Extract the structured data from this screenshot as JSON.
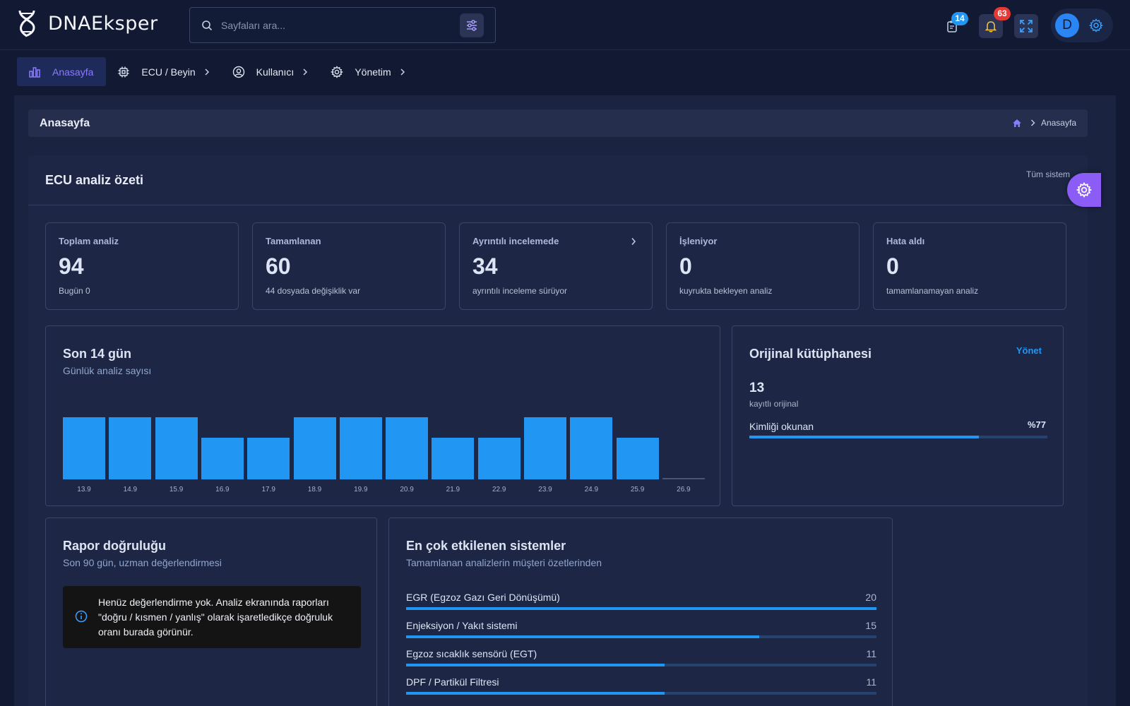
{
  "brand": {
    "name": "DNAEksper"
  },
  "search": {
    "placeholder": "Sayfaları ara..."
  },
  "topbar": {
    "tasks_badge": "14",
    "notifications_badge": "63",
    "avatar_initial": "D"
  },
  "nav": {
    "items": [
      {
        "label": "Anasayfa"
      },
      {
        "label": "ECU / Beyin"
      },
      {
        "label": "Kullanıcı"
      },
      {
        "label": "Yönetim"
      }
    ]
  },
  "page": {
    "title": "Anasayfa",
    "breadcrumb_current": "Anasayfa"
  },
  "summary": {
    "title": "ECU analiz özeti",
    "scope": "Tüm sistem",
    "stats": [
      {
        "label": "Toplam analiz",
        "value": "94",
        "sub": "Bugün 0"
      },
      {
        "label": "Tamamlanan",
        "value": "60",
        "sub": "44 dosyada değişiklik var"
      },
      {
        "label": "Ayrıntılı incelemede",
        "value": "34",
        "sub": "ayrıntılı inceleme sürüyor"
      },
      {
        "label": "İşleniyor",
        "value": "0",
        "sub": "kuyrukta bekleyen analiz"
      },
      {
        "label": "Hata aldı",
        "value": "0",
        "sub": "tamamlanamayan analiz"
      }
    ]
  },
  "daily_chart": {
    "title": "Son 14 gün",
    "subtitle": "Günlük analiz sayısı"
  },
  "chart_data": {
    "type": "bar",
    "categories": [
      "13.9",
      "14.9",
      "15.9",
      "16.9",
      "17.9",
      "18.9",
      "19.9",
      "20.9",
      "21.9",
      "22.9",
      "23.9",
      "24.9",
      "25.9",
      "26.9"
    ],
    "values": [
      3,
      3,
      3,
      2,
      2,
      3,
      3,
      3,
      2,
      2,
      3,
      3,
      2,
      0
    ],
    "ylim": [
      0,
      3
    ],
    "grid": false
  },
  "library": {
    "title": "Orijinal kütüphanesi",
    "manage": "Yönet",
    "count": "13",
    "count_label": "kayıtlı orijinal",
    "progress_label": "Kimliği okunan",
    "progress_text": "%77",
    "progress_value": 77
  },
  "accuracy": {
    "title": "Rapor doğruluğu",
    "subtitle": "Son 90 gün, uzman değerlendirmesi",
    "alert": "Henüz değerlendirme yok. Analiz ekranında raporları \"doğru / kısmen / yanlış\" olarak işaretledikçe doğruluk oranı burada görünür."
  },
  "systems": {
    "title": "En çok etkilenen sistemler",
    "subtitle": "Tamamlanan analizlerin müşteri özetlerinden",
    "max": 20,
    "items": [
      {
        "name": "EGR (Egzoz Gazı Geri Dönüşümü)",
        "count": 20
      },
      {
        "name": "Enjeksiyon / Yakıt sistemi",
        "count": 15
      },
      {
        "name": "Egzoz sıcaklık sensörü (EGT)",
        "count": 11
      },
      {
        "name": "DPF / Partikül Filtresi",
        "count": 11
      }
    ]
  },
  "colors": {
    "accent": "#8b5cf6",
    "primary": "#2196f3",
    "background": "#111a32",
    "card": "#1d2745"
  }
}
